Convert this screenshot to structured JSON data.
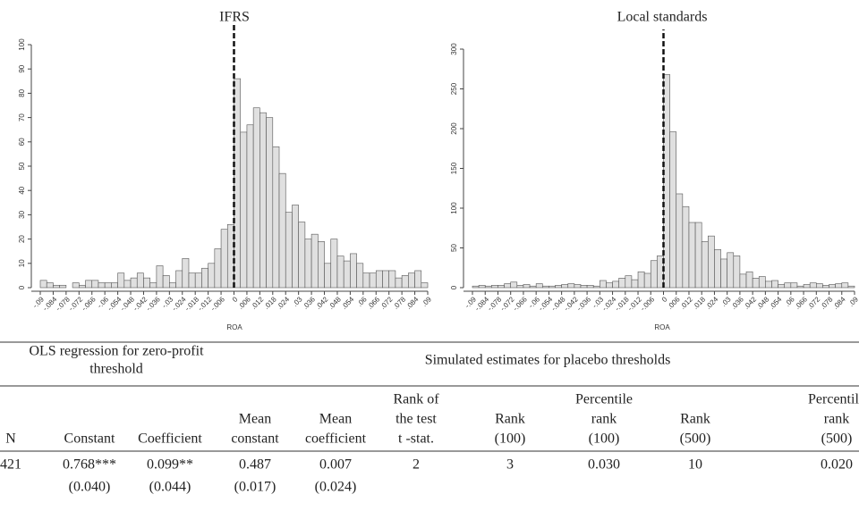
{
  "chart_data": [
    {
      "type": "histogram",
      "title": "IFRS",
      "x_label": "ROA",
      "bins": [
        -0.09,
        -0.087,
        -0.084,
        -0.081,
        -0.078,
        -0.075,
        -0.072,
        -0.069,
        -0.066,
        -0.063,
        -0.06,
        -0.057,
        -0.054,
        -0.051,
        -0.048,
        -0.045,
        -0.042,
        -0.039,
        -0.036,
        -0.033,
        -0.03,
        -0.027,
        -0.024,
        -0.021,
        -0.018,
        -0.015,
        -0.012,
        -0.009,
        -0.006,
        -0.003,
        0,
        0.003,
        0.006,
        0.009,
        0.012,
        0.015,
        0.018,
        0.021,
        0.024,
        0.027,
        0.03,
        0.033,
        0.036,
        0.039,
        0.042,
        0.045,
        0.048,
        0.051,
        0.054,
        0.057,
        0.06,
        0.063,
        0.066,
        0.069,
        0.072,
        0.075,
        0.078,
        0.081,
        0.084,
        0.087,
        0.09
      ],
      "values": [
        3,
        2,
        1,
        1,
        0,
        2,
        1,
        3,
        3,
        2,
        2,
        2,
        6,
        3,
        4,
        6,
        4,
        2,
        9,
        5,
        2,
        7,
        12,
        6,
        6,
        8,
        10,
        16,
        24,
        26,
        86,
        64,
        67,
        74,
        72,
        70,
        58,
        47,
        31,
        34,
        27,
        20,
        22,
        19,
        10,
        20,
        13,
        11,
        14,
        10,
        6,
        6,
        7,
        7,
        7,
        4,
        5,
        6,
        7,
        2
      ],
      "color": "#e0e0e0",
      "vline": 0,
      "xlim": [
        -0.09,
        0.09
      ],
      "ylim": [
        0,
        100
      ],
      "xticks": [
        {
          "value": -0.09,
          "label": "-.09"
        },
        {
          "value": -0.084,
          "label": "-.084"
        },
        {
          "value": -0.078,
          "label": "-.078"
        },
        {
          "value": -0.072,
          "label": "-.072"
        },
        {
          "value": -0.066,
          "label": "-.066"
        },
        {
          "value": -0.06,
          "label": "-.06"
        },
        {
          "value": -0.054,
          "label": "-.054"
        },
        {
          "value": -0.048,
          "label": "-.048"
        },
        {
          "value": -0.042,
          "label": "-.042"
        },
        {
          "value": -0.036,
          "label": "-.036"
        },
        {
          "value": -0.03,
          "label": "-.03"
        },
        {
          "value": -0.024,
          "label": "-.024"
        },
        {
          "value": -0.018,
          "label": "-.018"
        },
        {
          "value": -0.012,
          "label": "-.012"
        },
        {
          "value": -0.006,
          "label": "-.006"
        },
        0,
        {
          "value": 0.006,
          "label": ".006"
        },
        {
          "value": 0.012,
          "label": ".012"
        },
        {
          "value": 0.018,
          "label": ".018"
        },
        {
          "value": 0.024,
          "label": ".024"
        },
        {
          "value": 0.03,
          "label": ".03"
        },
        {
          "value": 0.036,
          "label": ".036"
        },
        {
          "value": 0.042,
          "label": ".042"
        },
        {
          "value": 0.048,
          "label": ".048"
        },
        {
          "value": 0.054,
          "label": ".054"
        },
        {
          "value": 0.06,
          "label": ".06"
        },
        {
          "value": 0.066,
          "label": ".066"
        },
        {
          "value": 0.072,
          "label": ".072"
        },
        {
          "value": 0.078,
          "label": ".078"
        },
        {
          "value": 0.084,
          "label": ".084"
        },
        {
          "value": 0.09,
          "label": ".09"
        }
      ],
      "yticks": [
        0,
        10,
        20,
        30,
        40,
        50,
        60,
        70,
        80,
        90,
        100
      ]
    },
    {
      "type": "histogram",
      "title": "Local standards",
      "x_label": "ROA",
      "bins": [
        -0.09,
        -0.087,
        -0.084,
        -0.081,
        -0.078,
        -0.075,
        -0.072,
        -0.069,
        -0.066,
        -0.063,
        -0.06,
        -0.057,
        -0.054,
        -0.051,
        -0.048,
        -0.045,
        -0.042,
        -0.039,
        -0.036,
        -0.033,
        -0.03,
        -0.027,
        -0.024,
        -0.021,
        -0.018,
        -0.015,
        -0.012,
        -0.009,
        -0.006,
        -0.003,
        0,
        0.003,
        0.006,
        0.009,
        0.012,
        0.015,
        0.018,
        0.021,
        0.024,
        0.027,
        0.03,
        0.033,
        0.036,
        0.039,
        0.042,
        0.045,
        0.048,
        0.051,
        0.054,
        0.057,
        0.06,
        0.063,
        0.066,
        0.069,
        0.072,
        0.075,
        0.078,
        0.081,
        0.084,
        0.087,
        0.09
      ],
      "values": [
        2,
        3,
        2,
        3,
        3,
        5,
        7,
        3,
        4,
        2,
        5,
        2,
        2,
        3,
        4,
        5,
        4,
        3,
        3,
        2,
        9,
        6,
        8,
        12,
        15,
        10,
        20,
        18,
        34,
        40,
        268,
        196,
        118,
        102,
        82,
        82,
        58,
        65,
        48,
        36,
        44,
        40,
        17,
        20,
        12,
        14,
        8,
        9,
        4,
        6,
        6,
        2,
        4,
        6,
        5,
        3,
        4,
        5,
        6,
        2
      ],
      "color": "#e0e0e0",
      "vline": 0,
      "xlim": [
        -0.09,
        0.09
      ],
      "ylim": [
        0,
        300
      ],
      "xticks": [
        {
          "value": -0.09,
          "label": "-.09"
        },
        {
          "value": -0.084,
          "label": "-.084"
        },
        {
          "value": -0.078,
          "label": "-.078"
        },
        {
          "value": -0.072,
          "label": "-.072"
        },
        {
          "value": -0.066,
          "label": "-.066"
        },
        {
          "value": -0.06,
          "label": "-.06"
        },
        {
          "value": -0.054,
          "label": "-.054"
        },
        {
          "value": -0.048,
          "label": "-.048"
        },
        {
          "value": -0.042,
          "label": "-.042"
        },
        {
          "value": -0.036,
          "label": "-.036"
        },
        {
          "value": -0.03,
          "label": "-.03"
        },
        {
          "value": -0.024,
          "label": "-.024"
        },
        {
          "value": -0.018,
          "label": "-.018"
        },
        {
          "value": -0.012,
          "label": "-.012"
        },
        {
          "value": -0.006,
          "label": "-.006"
        },
        0,
        {
          "value": 0.006,
          "label": ".006"
        },
        {
          "value": 0.012,
          "label": ".012"
        },
        {
          "value": 0.018,
          "label": ".018"
        },
        {
          "value": 0.024,
          "label": ".024"
        },
        {
          "value": 0.03,
          "label": ".03"
        },
        {
          "value": 0.036,
          "label": ".036"
        },
        {
          "value": 0.042,
          "label": ".042"
        },
        {
          "value": 0.048,
          "label": ".048"
        },
        {
          "value": 0.054,
          "label": ".054"
        },
        {
          "value": 0.06,
          "label": ".06"
        },
        {
          "value": 0.066,
          "label": ".066"
        },
        {
          "value": 0.072,
          "label": ".072"
        },
        {
          "value": 0.078,
          "label": ".078"
        },
        {
          "value": 0.084,
          "label": ".084"
        },
        {
          "value": 0.09,
          "label": ".09"
        }
      ],
      "yticks": [
        0,
        50,
        100,
        150,
        200,
        250,
        300
      ]
    }
  ],
  "table": {
    "group_headers": [
      [
        "OLS regression for zero-profit",
        "threshold"
      ],
      [
        "Simulated estimates for placebo thresholds"
      ]
    ],
    "columns": [
      [
        "N"
      ],
      [
        "Constant"
      ],
      [
        "Coefficient"
      ],
      [
        "Mean",
        "constant"
      ],
      [
        "Mean",
        "coefficient"
      ],
      [
        "Rank of",
        "the test",
        "t -stat."
      ],
      [
        "Rank",
        "(100)"
      ],
      [
        "Percentile",
        "rank",
        "(100)"
      ],
      [
        "Rank",
        "(500)"
      ],
      [
        "Percentile",
        "rank",
        "(500)"
      ]
    ],
    "rows": [
      [
        "421",
        "0.768***",
        "0.099**",
        "0.487",
        "0.007",
        "2",
        "3",
        "0.030",
        "10",
        "0.020"
      ],
      [
        null,
        "(0.040)",
        "(0.044)",
        "(0.017)",
        "(0.024)",
        null,
        null,
        null,
        null,
        null
      ]
    ]
  }
}
